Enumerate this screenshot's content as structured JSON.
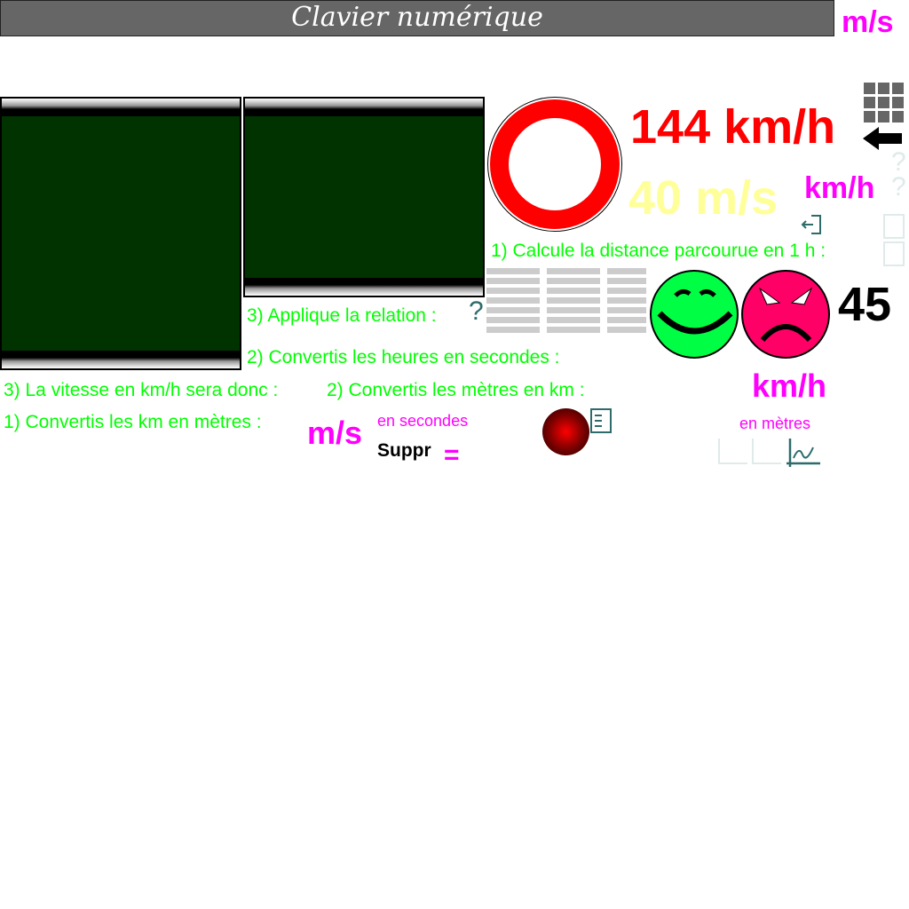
{
  "header": {
    "title": "Clavier numérique",
    "unit_top": "m/s"
  },
  "display": {
    "value_kmh": "144 km/h",
    "value_ms": "40 m/s",
    "unit_kmh": "km/h",
    "score": "45",
    "unit_kmh2": "km/h",
    "unit_ms": "m/s"
  },
  "steps": {
    "calc_distance": "1) Calcule la distance parcourue en 1 h :",
    "apply_relation": "3) Applique la relation :",
    "convert_hours": "2) Convertis les heures en secondes :",
    "speed_kmh": "3) La vitesse en km/h sera donc :",
    "convert_meters_km": "2) Convertis les mètres en km :",
    "convert_km_m": "1) Convertis les km en mètres :"
  },
  "labels": {
    "en_secondes": "en secondes",
    "en_metres": "en mètres",
    "suppr": "Suppr",
    "equals": "=",
    "question": "?"
  },
  "colors": {
    "green": "#00ff00",
    "magenta": "#ff00ff",
    "red": "#ff0000",
    "yellow": "#ffff99",
    "board": "#003300",
    "teal": "#2e6b6b"
  },
  "icons": {
    "keypad": "keypad-icon",
    "back": "arrow-left-icon",
    "exit": "exit-icon",
    "checklist": "checklist-icon",
    "graph": "graph-icon",
    "help": "question-icon"
  }
}
